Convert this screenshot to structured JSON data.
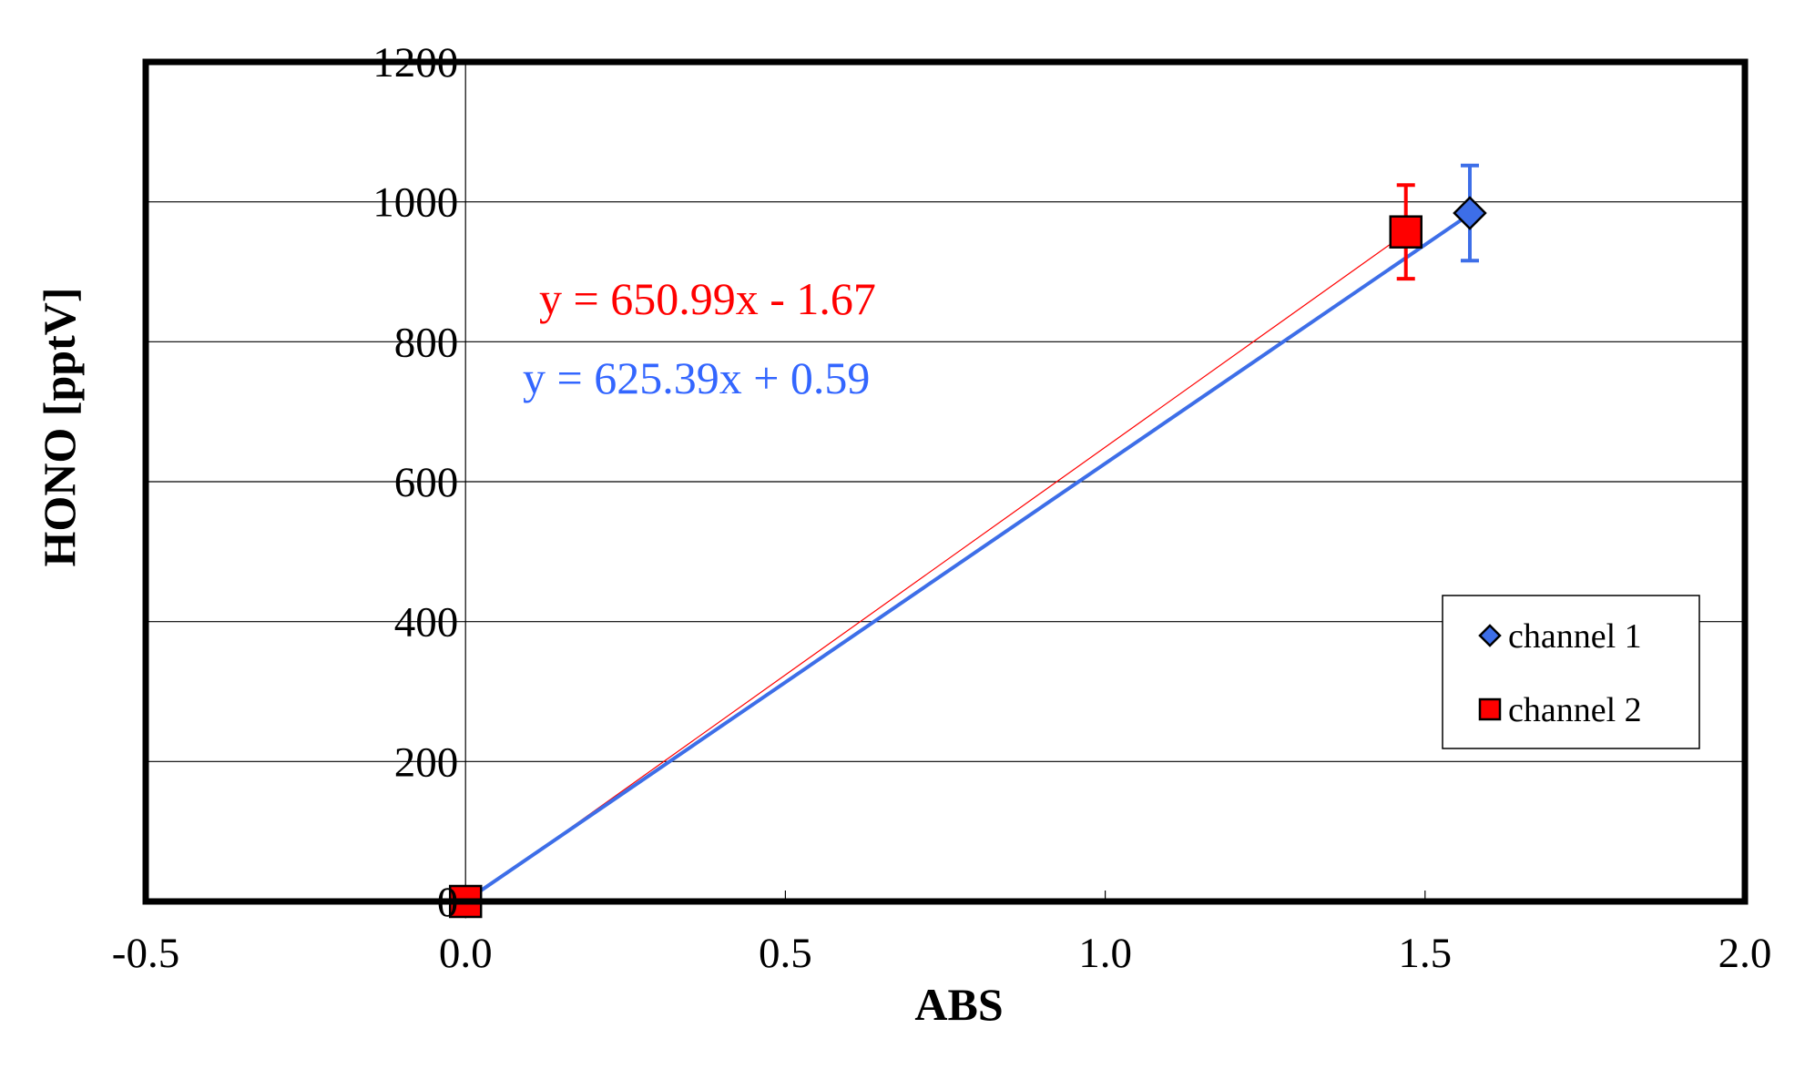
{
  "chart_data": {
    "type": "scatter",
    "xlabel": "ABS",
    "ylabel": "HONO [pptV]",
    "xlim": [
      -0.5,
      2.0
    ],
    "ylim": [
      0,
      1200
    ],
    "x_ticks": [
      -0.5,
      0.0,
      0.5,
      1.0,
      1.5,
      2.0
    ],
    "x_tick_labels": [
      "-0.5",
      "0.0",
      "0.5",
      "1.0",
      "1.5",
      "2.0"
    ],
    "y_ticks": [
      0,
      200,
      400,
      600,
      800,
      1000,
      1200
    ],
    "y_tick_labels": [
      "0",
      "200",
      "400",
      "600",
      "800",
      "1000",
      "1200"
    ],
    "grid": "horizontal",
    "legend_position": "bottom-right",
    "series": [
      {
        "name": "channel 1",
        "marker": "diamond",
        "color": "#3d6ee8",
        "points": [
          {
            "x": 0.0,
            "y": 0,
            "err": 0
          },
          {
            "x": 1.57,
            "y": 984,
            "err": 68
          }
        ],
        "fit": {
          "slope": 625.39,
          "intercept": 0.59,
          "label": "y = 625.39x + 0.59",
          "color": "#3366ff"
        }
      },
      {
        "name": "channel 2",
        "marker": "square",
        "color": "#ff0000",
        "points": [
          {
            "x": 0.0,
            "y": 0,
            "err": 0
          },
          {
            "x": 1.47,
            "y": 957,
            "err": 67
          }
        ],
        "fit": {
          "slope": 650.99,
          "intercept": -1.67,
          "label": "y = 650.99x - 1.67",
          "color": "#ff0000"
        }
      }
    ]
  }
}
